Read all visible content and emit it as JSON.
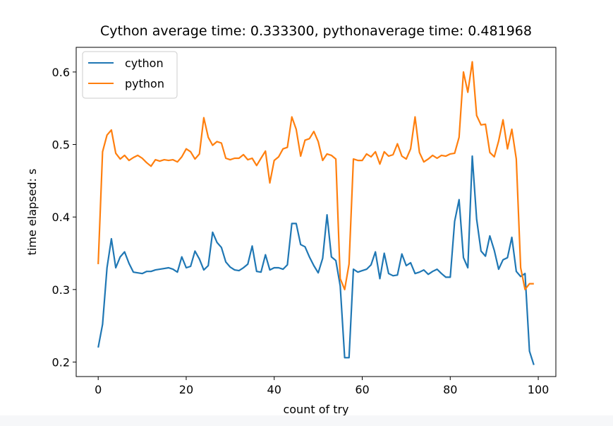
{
  "chart_data": {
    "type": "line",
    "title": "Cython average time: 0.333300, pythonaverage time: 0.481968",
    "xlabel": "count of try",
    "ylabel": "time elapsed: s",
    "xlim": [
      -5,
      104
    ],
    "ylim": [
      0.18,
      0.634
    ],
    "xticks": [
      0,
      20,
      40,
      60,
      80,
      100
    ],
    "yticks": [
      0.2,
      0.3,
      0.4,
      0.5,
      0.6
    ],
    "xtick_labels": [
      "0",
      "20",
      "40",
      "60",
      "80",
      "100"
    ],
    "ytick_labels": [
      "0.2",
      "0.3",
      "0.4",
      "0.5",
      "0.6"
    ],
    "legend_position": "upper-left",
    "series": [
      {
        "name": "cython",
        "color": "#1f77b4",
        "x": [
          0,
          1,
          2,
          3,
          4,
          5,
          6,
          7,
          8,
          9,
          10,
          11,
          12,
          13,
          14,
          15,
          16,
          17,
          18,
          19,
          20,
          21,
          22,
          23,
          24,
          25,
          26,
          27,
          28,
          29,
          30,
          31,
          32,
          33,
          34,
          35,
          36,
          37,
          38,
          39,
          40,
          41,
          42,
          43,
          44,
          45,
          46,
          47,
          48,
          49,
          50,
          51,
          52,
          53,
          54,
          55,
          56,
          57,
          58,
          59,
          60,
          61,
          62,
          63,
          64,
          65,
          66,
          67,
          68,
          69,
          70,
          71,
          72,
          73,
          74,
          75,
          76,
          77,
          78,
          79,
          80,
          81,
          82,
          83,
          84,
          85,
          86,
          87,
          88,
          89,
          90,
          91,
          92,
          93,
          94,
          95,
          96,
          97,
          98,
          99
        ],
        "values": [
          0.22,
          0.252,
          0.33,
          0.37,
          0.33,
          0.345,
          0.352,
          0.336,
          0.324,
          0.323,
          0.322,
          0.325,
          0.325,
          0.327,
          0.328,
          0.329,
          0.33,
          0.328,
          0.324,
          0.345,
          0.33,
          0.332,
          0.353,
          0.342,
          0.327,
          0.333,
          0.379,
          0.365,
          0.358,
          0.338,
          0.331,
          0.327,
          0.326,
          0.33,
          0.335,
          0.36,
          0.325,
          0.324,
          0.348,
          0.327,
          0.33,
          0.33,
          0.328,
          0.334,
          0.391,
          0.391,
          0.362,
          0.359,
          0.345,
          0.333,
          0.323,
          0.343,
          0.403,
          0.345,
          0.34,
          0.305,
          0.206,
          0.206,
          0.328,
          0.324,
          0.326,
          0.328,
          0.334,
          0.352,
          0.315,
          0.35,
          0.322,
          0.319,
          0.32,
          0.349,
          0.333,
          0.337,
          0.322,
          0.324,
          0.327,
          0.321,
          0.325,
          0.328,
          0.322,
          0.317,
          0.317,
          0.394,
          0.424,
          0.344,
          0.33,
          0.484,
          0.397,
          0.353,
          0.346,
          0.374,
          0.354,
          0.328,
          0.341,
          0.344,
          0.372,
          0.325,
          0.318,
          0.322,
          0.215,
          0.196
        ]
      },
      {
        "name": "python",
        "color": "#ff7f0e",
        "x": [
          0,
          1,
          2,
          3,
          4,
          5,
          6,
          7,
          8,
          9,
          10,
          11,
          12,
          13,
          14,
          15,
          16,
          17,
          18,
          19,
          20,
          21,
          22,
          23,
          24,
          25,
          26,
          27,
          28,
          29,
          30,
          31,
          32,
          33,
          34,
          35,
          36,
          37,
          38,
          39,
          40,
          41,
          42,
          43,
          44,
          45,
          46,
          47,
          48,
          49,
          50,
          51,
          52,
          53,
          54,
          55,
          56,
          57,
          58,
          59,
          60,
          61,
          62,
          63,
          64,
          65,
          66,
          67,
          68,
          69,
          70,
          71,
          72,
          73,
          74,
          75,
          76,
          77,
          78,
          79,
          80,
          81,
          82,
          83,
          84,
          85,
          86,
          87,
          88,
          89,
          90,
          91,
          92,
          93,
          94,
          95,
          96,
          97,
          98,
          99
        ],
        "values": [
          0.335,
          0.49,
          0.513,
          0.52,
          0.488,
          0.48,
          0.485,
          0.478,
          0.482,
          0.485,
          0.481,
          0.475,
          0.47,
          0.479,
          0.477,
          0.479,
          0.478,
          0.479,
          0.476,
          0.483,
          0.494,
          0.49,
          0.48,
          0.487,
          0.537,
          0.51,
          0.499,
          0.504,
          0.502,
          0.481,
          0.479,
          0.481,
          0.481,
          0.486,
          0.479,
          0.481,
          0.471,
          0.481,
          0.491,
          0.447,
          0.478,
          0.483,
          0.494,
          0.496,
          0.538,
          0.521,
          0.484,
          0.506,
          0.508,
          0.518,
          0.504,
          0.478,
          0.487,
          0.485,
          0.48,
          0.315,
          0.3,
          0.335,
          0.48,
          0.478,
          0.478,
          0.487,
          0.483,
          0.49,
          0.473,
          0.49,
          0.484,
          0.486,
          0.501,
          0.484,
          0.48,
          0.494,
          0.538,
          0.489,
          0.476,
          0.48,
          0.485,
          0.481,
          0.485,
          0.484,
          0.487,
          0.488,
          0.51,
          0.6,
          0.572,
          0.614,
          0.54,
          0.527,
          0.528,
          0.489,
          0.483,
          0.505,
          0.534,
          0.494,
          0.521,
          0.48,
          0.33,
          0.3,
          0.308,
          0.308
        ]
      }
    ]
  }
}
